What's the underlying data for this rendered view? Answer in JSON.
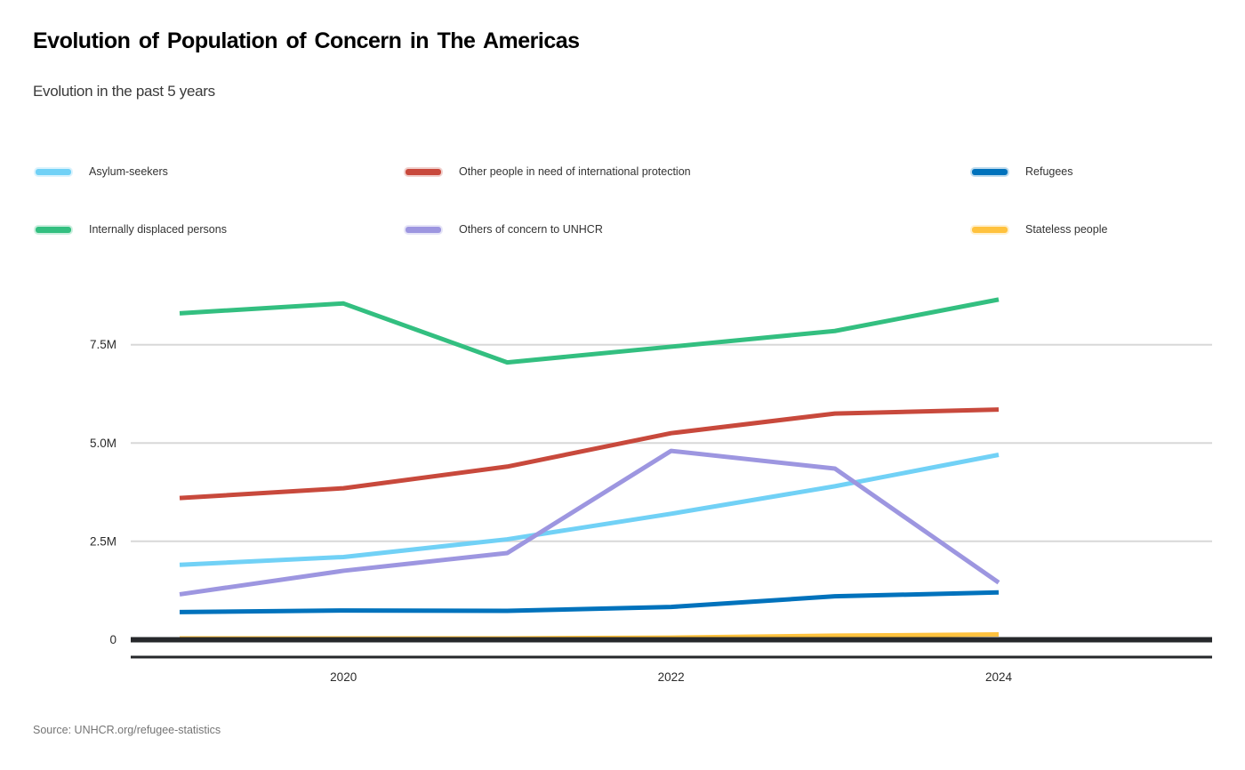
{
  "header": {
    "title": "Evolution of Population of Concern in The Americas",
    "subtitle": "Evolution in the past 5 years"
  },
  "source": "Source: UNHCR.org/refugee-statistics",
  "legend": {
    "position": "top",
    "items": [
      {
        "label": "Asylum-seekers",
        "color": "#71D1F6"
      },
      {
        "label": "Other people in need of international protection",
        "color": "#C8493C"
      },
      {
        "label": "Refugees",
        "color": "#0072BC"
      },
      {
        "label": "Internally displaced persons",
        "color": "#33BF80"
      },
      {
        "label": "Others of concern to UNHCR",
        "color": "#9D96E0"
      },
      {
        "label": "Stateless people",
        "color": "#FFC23E"
      }
    ]
  },
  "chart_data": {
    "type": "line",
    "title": "Evolution of Population of Concern in The Americas",
    "subtitle": "Evolution in the past 5 years",
    "unit": "millions of people",
    "x": [
      2019,
      2020,
      2021,
      2022,
      2023,
      2024
    ],
    "x_tick_labels": [
      {
        "label": "2020",
        "year": 2020
      },
      {
        "label": "2022",
        "year": 2022
      },
      {
        "label": "2024",
        "year": 2024
      }
    ],
    "y_ticks": [
      {
        "label": "7.5M",
        "value": 7.5
      },
      {
        "label": "5.0M",
        "value": 5.0
      },
      {
        "label": "2.5M",
        "value": 2.5
      },
      {
        "label": "0",
        "value": 0
      }
    ],
    "ylim": [
      0,
      9.2
    ],
    "grid": "horizontal",
    "legend_position": "top",
    "series": [
      {
        "name": "Stateless people",
        "color": "#FFC23E",
        "values": [
          0.03,
          0.03,
          0.03,
          0.05,
          0.1,
          0.13
        ]
      },
      {
        "name": "Internally displaced persons",
        "color": "#33BF80",
        "values": [
          8.3,
          8.55,
          7.05,
          7.45,
          7.85,
          8.65
        ]
      },
      {
        "name": "Other people in need of international protection",
        "color": "#C8493C",
        "values": [
          3.6,
          3.85,
          4.4,
          5.25,
          5.75,
          5.85
        ]
      },
      {
        "name": "Asylum-seekers",
        "color": "#71D1F6",
        "values": [
          1.9,
          2.1,
          2.55,
          3.2,
          3.9,
          4.7
        ]
      },
      {
        "name": "Refugees",
        "color": "#0072BC",
        "values": [
          0.7,
          0.74,
          0.73,
          0.83,
          1.1,
          1.2
        ]
      },
      {
        "name": "Others of concern to UNHCR",
        "color": "#9D96E0",
        "values": [
          1.15,
          1.75,
          2.2,
          4.8,
          4.35,
          1.45
        ]
      }
    ],
    "colors": {
      "grid": "#D8D8D8",
      "axis": "#26282B",
      "tick_text": "#2B2B2B"
    }
  }
}
